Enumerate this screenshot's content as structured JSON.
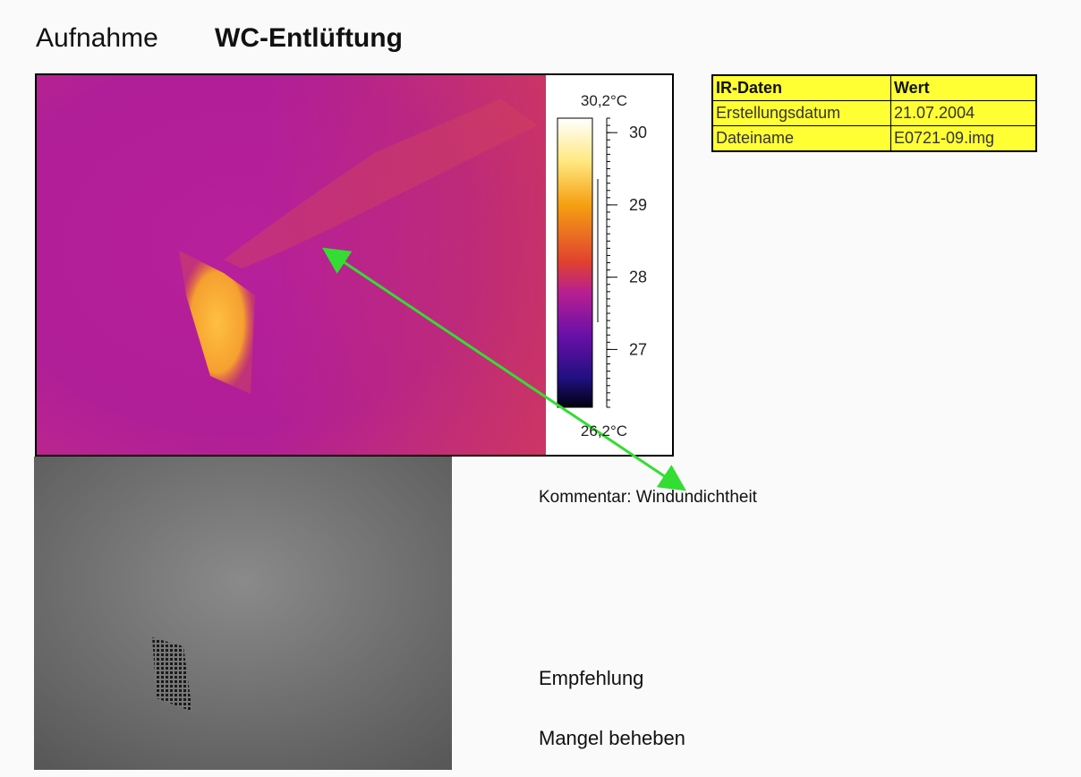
{
  "header": {
    "prefix": "Aufnahme",
    "title": "WC-Entlüftung"
  },
  "scale": {
    "max": {
      "value": 30.2,
      "label": "30,2°C"
    },
    "min": {
      "value": 26.2,
      "label": "26,2°C"
    },
    "ticks": [
      30,
      29,
      28,
      27
    ]
  },
  "table": {
    "header": [
      "IR-Daten",
      "Wert"
    ],
    "rows": [
      [
        "Erstellungsdatum",
        "21.07.2004"
      ],
      [
        "Dateiname",
        "E0721-09.img"
      ]
    ]
  },
  "comment": "Kommentar: Windundichtheit",
  "recommendation": {
    "heading": "Empfehlung",
    "text": "Mangel beheben"
  }
}
